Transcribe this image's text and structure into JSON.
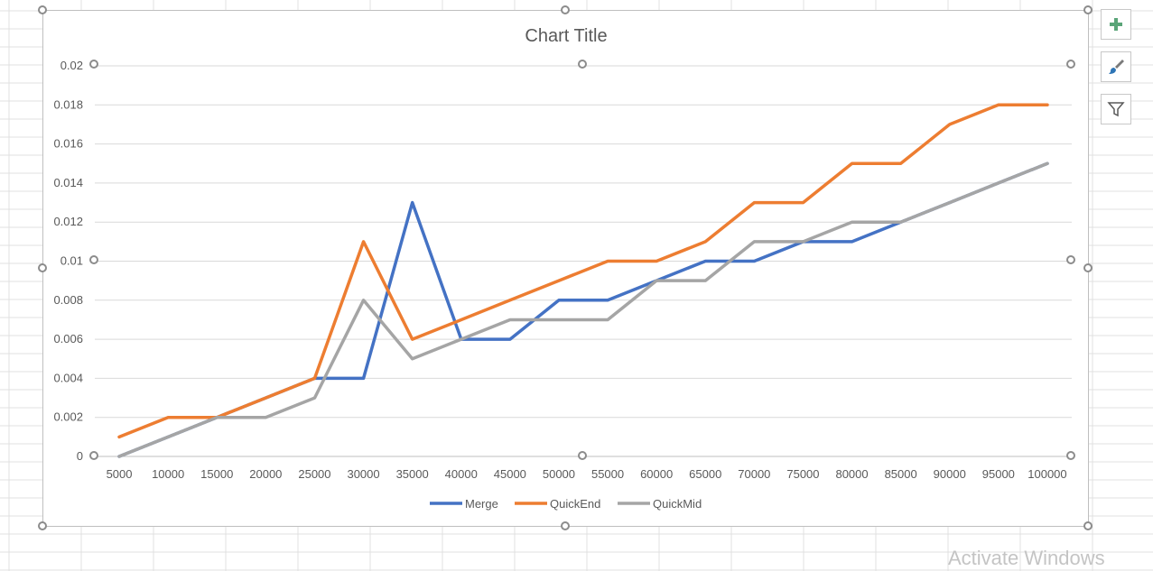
{
  "chart_data": {
    "type": "line",
    "title": "Chart Title",
    "categories": [
      "5000",
      "10000",
      "15000",
      "20000",
      "25000",
      "30000",
      "35000",
      "40000",
      "45000",
      "50000",
      "55000",
      "60000",
      "65000",
      "70000",
      "75000",
      "80000",
      "85000",
      "90000",
      "95000",
      "100000"
    ],
    "series": [
      {
        "name": "Merge",
        "color": "#4472c4",
        "values": [
          0,
          0.001,
          0.002,
          0.003,
          0.004,
          0.004,
          0.013,
          0.006,
          0.006,
          0.008,
          0.008,
          0.009,
          0.01,
          0.01,
          0.011,
          0.011,
          0.012,
          0.013,
          0.014,
          0.015
        ]
      },
      {
        "name": "QuickEnd",
        "color": "#ed7d31",
        "values": [
          0.001,
          0.002,
          0.002,
          0.003,
          0.004,
          0.011,
          0.006,
          0.007,
          0.008,
          0.009,
          0.01,
          0.01,
          0.011,
          0.013,
          0.013,
          0.015,
          0.015,
          0.017,
          0.018,
          0.018
        ]
      },
      {
        "name": "QuickMid",
        "color": "#a5a5a5",
        "values": [
          0,
          0.001,
          0.002,
          0.002,
          0.003,
          0.008,
          0.005,
          0.006,
          0.007,
          0.007,
          0.007,
          0.009,
          0.009,
          0.011,
          0.011,
          0.012,
          0.012,
          0.013,
          0.014,
          0.015
        ]
      }
    ],
    "ylim": [
      0,
      0.02
    ],
    "yticks": [
      "0",
      "0.002",
      "0.004",
      "0.006",
      "0.008",
      "0.01",
      "0.012",
      "0.014",
      "0.016",
      "0.018",
      "0.02"
    ],
    "grid": true,
    "legend": "bottom"
  },
  "side_buttons": {
    "elements_icon": "plus-icon",
    "styles_icon": "brush-icon",
    "filters_icon": "funnel-icon"
  },
  "watermark": "Activate Windows"
}
